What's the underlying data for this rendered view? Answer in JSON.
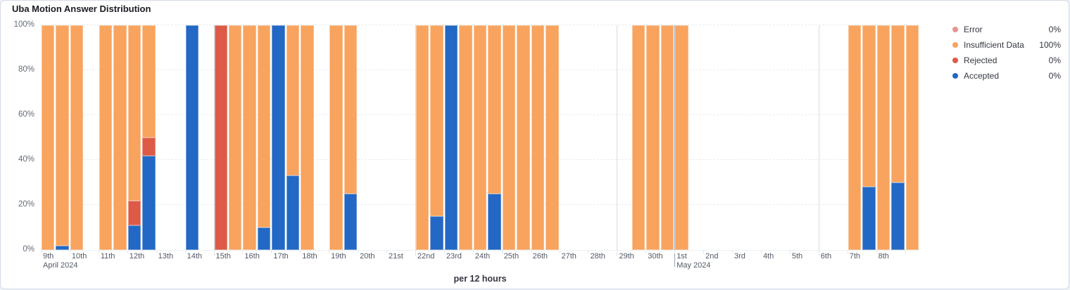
{
  "title": "Uba Motion Answer Distribution",
  "axis_subtitle": "per 12 hours",
  "colors": {
    "error": "#E7938C",
    "insufficient": "#F8A35E",
    "rejected": "#DD5A47",
    "accepted": "#2268C4"
  },
  "legend": {
    "items": [
      {
        "key": "error",
        "label": "Error",
        "value": "0%"
      },
      {
        "key": "insufficient",
        "label": "Insufficient Data",
        "value": "100%"
      },
      {
        "key": "rejected",
        "label": "Rejected",
        "value": "0%"
      },
      {
        "key": "accepted",
        "label": "Accepted",
        "value": "0%"
      }
    ]
  },
  "chart_data": {
    "type": "bar",
    "stacked": true,
    "unit": "percent",
    "bucket_hours": 12,
    "ylim": [
      0,
      100
    ],
    "y_ticks": [
      "0%",
      "20%",
      "40%",
      "60%",
      "80%",
      "100%"
    ],
    "stack_order": [
      "accepted",
      "rejected",
      "error",
      "insufficient"
    ],
    "x_day_ticks": [
      {
        "label": "9th",
        "sub": "April 2024"
      },
      {
        "label": "10th"
      },
      {
        "label": "11th"
      },
      {
        "label": "12th"
      },
      {
        "label": "13th"
      },
      {
        "label": "14th"
      },
      {
        "label": "15th"
      },
      {
        "label": "16th"
      },
      {
        "label": "17th"
      },
      {
        "label": "18th"
      },
      {
        "label": "19th"
      },
      {
        "label": "20th"
      },
      {
        "label": "21st"
      },
      {
        "label": "22nd"
      },
      {
        "label": "23rd"
      },
      {
        "label": "24th"
      },
      {
        "label": "25th"
      },
      {
        "label": "26th"
      },
      {
        "label": "27th"
      },
      {
        "label": "28th"
      },
      {
        "label": "29th"
      },
      {
        "label": "30th"
      },
      {
        "label": "1st",
        "sub": "May 2024"
      },
      {
        "label": "2nd"
      },
      {
        "label": "3rd"
      },
      {
        "label": "4th"
      },
      {
        "label": "5th"
      },
      {
        "label": "6th"
      },
      {
        "label": "7th"
      },
      {
        "label": "8th"
      },
      {
        "label": ""
      }
    ],
    "week_gridline_day_indices": [
      6,
      13,
      20,
      27
    ],
    "month_gridline_day_index": 22,
    "bars": [
      {
        "i": 0,
        "insufficient": 100
      },
      {
        "i": 1,
        "accepted": 2,
        "insufficient": 98
      },
      {
        "i": 2,
        "insufficient": 100
      },
      {
        "i": 4,
        "insufficient": 100
      },
      {
        "i": 5,
        "insufficient": 100
      },
      {
        "i": 6,
        "accepted": 11,
        "rejected": 11,
        "insufficient": 78
      },
      {
        "i": 7,
        "accepted": 42,
        "rejected": 8,
        "insufficient": 50
      },
      {
        "i": 10,
        "accepted": 100
      },
      {
        "i": 12,
        "rejected": 100
      },
      {
        "i": 13,
        "insufficient": 100
      },
      {
        "i": 14,
        "insufficient": 100
      },
      {
        "i": 15,
        "accepted": 10,
        "insufficient": 90
      },
      {
        "i": 16,
        "accepted": 100
      },
      {
        "i": 17,
        "accepted": 33,
        "insufficient": 67
      },
      {
        "i": 18,
        "insufficient": 100
      },
      {
        "i": 20,
        "insufficient": 100
      },
      {
        "i": 21,
        "accepted": 25,
        "insufficient": 75
      },
      {
        "i": 26,
        "insufficient": 100
      },
      {
        "i": 27,
        "accepted": 15,
        "insufficient": 85
      },
      {
        "i": 28,
        "accepted": 100
      },
      {
        "i": 29,
        "insufficient": 100
      },
      {
        "i": 30,
        "insufficient": 100
      },
      {
        "i": 31,
        "accepted": 25,
        "insufficient": 75
      },
      {
        "i": 32,
        "insufficient": 100
      },
      {
        "i": 33,
        "insufficient": 100
      },
      {
        "i": 34,
        "insufficient": 100
      },
      {
        "i": 35,
        "insufficient": 100
      },
      {
        "i": 41,
        "insufficient": 100
      },
      {
        "i": 42,
        "insufficient": 100
      },
      {
        "i": 43,
        "insufficient": 100
      },
      {
        "i": 44,
        "insufficient": 100
      },
      {
        "i": 56,
        "insufficient": 100
      },
      {
        "i": 57,
        "accepted": 28,
        "insufficient": 72
      },
      {
        "i": 58,
        "insufficient": 100
      },
      {
        "i": 59,
        "accepted": 30,
        "insufficient": 70
      },
      {
        "i": 60,
        "insufficient": 100
      }
    ]
  }
}
